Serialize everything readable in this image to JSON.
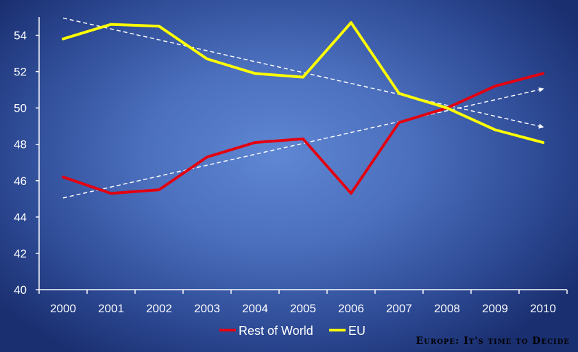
{
  "chart_data": {
    "type": "line",
    "title": "",
    "xlabel": "",
    "ylabel": "",
    "categories": [
      "2000",
      "2001",
      "2002",
      "2003",
      "2004",
      "2005",
      "2006",
      "2007",
      "2008",
      "2009",
      "2010"
    ],
    "ylim": [
      40,
      55
    ],
    "yticks": [
      40,
      42,
      44,
      46,
      48,
      50,
      52,
      54
    ],
    "grid": false,
    "legend_position": "bottom",
    "series": [
      {
        "name": "Rest of World",
        "color": "#e3000f",
        "values": [
          46.2,
          45.3,
          45.5,
          47.3,
          48.1,
          48.3,
          45.3,
          49.2,
          50.0,
          51.2,
          51.9
        ]
      },
      {
        "name": "EU",
        "color": "#ffff00",
        "values": [
          53.8,
          54.6,
          54.5,
          52.7,
          51.9,
          51.7,
          54.7,
          50.8,
          50.0,
          48.8,
          48.1
        ]
      }
    ],
    "trendlines": [
      {
        "series": "Rest of World",
        "color": "#ffffff",
        "style": "dashed",
        "start": 45.05,
        "end": 51.05
      },
      {
        "series": "EU",
        "color": "#ffffff",
        "style": "dashed",
        "start": 54.95,
        "end": 48.95
      }
    ]
  },
  "watermark": "Europe: It's time to Decide"
}
